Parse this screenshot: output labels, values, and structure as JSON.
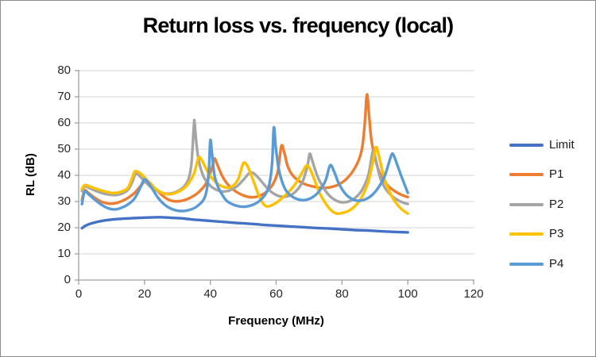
{
  "window": {
    "background": "#FFFFFF",
    "border_color": "#8C8C8C"
  },
  "chart_data": {
    "type": "line",
    "title": "Return loss vs. frequency (local)",
    "xlabel": "Frequency (MHz)",
    "ylabel": "RL (dB)",
    "xlim": [
      0,
      120
    ],
    "ylim": [
      0,
      80
    ],
    "x_ticks": [
      0,
      20,
      40,
      60,
      80,
      100,
      120
    ],
    "y_ticks": [
      0,
      10,
      20,
      30,
      40,
      50,
      60,
      70,
      80
    ],
    "grid": "horizontal",
    "legend_position": "right",
    "axis_color": "#A0A0A0",
    "grid_color": "#D6D6D6",
    "tick_label_color": "#262626",
    "series": [
      {
        "name": "Limit",
        "color": "#4472C4",
        "points": [
          [
            1,
            19.8
          ],
          [
            2,
            20.7
          ],
          [
            4,
            21.7
          ],
          [
            6,
            22.3
          ],
          [
            8,
            22.8
          ],
          [
            10,
            23.1
          ],
          [
            13,
            23.4
          ],
          [
            16,
            23.6
          ],
          [
            19,
            23.8
          ],
          [
            22,
            23.9
          ],
          [
            25,
            24.0
          ],
          [
            28,
            23.8
          ],
          [
            31,
            23.6
          ],
          [
            34,
            23.2
          ],
          [
            37,
            22.9
          ],
          [
            40,
            22.6
          ],
          [
            44,
            22.2
          ],
          [
            48,
            21.8
          ],
          [
            52,
            21.5
          ],
          [
            56,
            21.1
          ],
          [
            60,
            20.8
          ],
          [
            64,
            20.5
          ],
          [
            68,
            20.2
          ],
          [
            72,
            19.9
          ],
          [
            76,
            19.7
          ],
          [
            80,
            19.4
          ],
          [
            84,
            19.1
          ],
          [
            88,
            18.9
          ],
          [
            92,
            18.6
          ],
          [
            96,
            18.4
          ],
          [
            100,
            18.2
          ]
        ]
      },
      {
        "name": "P1",
        "color": "#ED7D31",
        "points": [
          [
            1,
            30.5
          ],
          [
            1.8,
            34.2
          ],
          [
            3,
            33.2
          ],
          [
            5,
            31.3
          ],
          [
            7,
            29.9
          ],
          [
            9,
            29.2
          ],
          [
            11,
            29.3
          ],
          [
            13,
            30.1
          ],
          [
            15,
            31.4
          ],
          [
            17,
            33.3
          ],
          [
            19,
            36.2
          ],
          [
            20.3,
            37.9
          ],
          [
            21.5,
            37.3
          ],
          [
            23,
            35.2
          ],
          [
            25,
            32.8
          ],
          [
            27,
            30.9
          ],
          [
            29,
            30.1
          ],
          [
            31,
            30.2
          ],
          [
            33,
            30.9
          ],
          [
            35,
            32.2
          ],
          [
            37,
            34.2
          ],
          [
            39,
            37.5
          ],
          [
            40.5,
            43.0
          ],
          [
            41.2,
            46.4
          ],
          [
            42,
            44.5
          ],
          [
            43.5,
            40.0
          ],
          [
            45,
            37.0
          ],
          [
            47,
            34.5
          ],
          [
            49,
            32.9
          ],
          [
            51,
            31.9
          ],
          [
            53,
            31.6
          ],
          [
            55,
            32.2
          ],
          [
            57,
            33.6
          ],
          [
            59,
            36.6
          ],
          [
            60.5,
            41.5
          ],
          [
            61.6,
            51.2
          ],
          [
            62.5,
            48.5
          ],
          [
            63.5,
            43.5
          ],
          [
            65,
            40.0
          ],
          [
            67,
            37.8
          ],
          [
            69,
            36.5
          ],
          [
            71,
            35.8
          ],
          [
            73,
            35.3
          ],
          [
            75,
            35.2
          ],
          [
            77,
            35.6
          ],
          [
            79,
            36.5
          ],
          [
            81,
            38.2
          ],
          [
            83,
            41.0
          ],
          [
            85,
            45.5
          ],
          [
            86.2,
            51.0
          ],
          [
            87,
            61.0
          ],
          [
            87.6,
            70.9
          ],
          [
            88.3,
            62.0
          ],
          [
            89,
            53.0
          ],
          [
            90.5,
            44.5
          ],
          [
            92,
            39.5
          ],
          [
            94,
            36.0
          ],
          [
            96,
            34.0
          ],
          [
            98,
            32.6
          ],
          [
            100,
            31.7
          ]
        ]
      },
      {
        "name": "P2",
        "color": "#A5A5A5",
        "points": [
          [
            1,
            34.0
          ],
          [
            1.9,
            35.8
          ],
          [
            3.5,
            35.0
          ],
          [
            5.5,
            33.9
          ],
          [
            7.5,
            33.1
          ],
          [
            9.5,
            32.6
          ],
          [
            11.5,
            32.5
          ],
          [
            13.5,
            33.2
          ],
          [
            15,
            34.5
          ],
          [
            16.3,
            37.5
          ],
          [
            17.3,
            40.7
          ],
          [
            18.3,
            40.0
          ],
          [
            20,
            37.8
          ],
          [
            22,
            35.4
          ],
          [
            24,
            33.9
          ],
          [
            26,
            33.1
          ],
          [
            28,
            33.1
          ],
          [
            30,
            33.9
          ],
          [
            32,
            35.7
          ],
          [
            33.5,
            39.0
          ],
          [
            34.3,
            45.0
          ],
          [
            35.0,
            59.0
          ],
          [
            35.2,
            60.5
          ],
          [
            35.7,
            53.0
          ],
          [
            36.5,
            45.5
          ],
          [
            38,
            39.4
          ],
          [
            40,
            36.0
          ],
          [
            42,
            34.4
          ],
          [
            44,
            33.8
          ],
          [
            46,
            34.3
          ],
          [
            48,
            35.7
          ],
          [
            50,
            38.2
          ],
          [
            51.8,
            40.8
          ],
          [
            53,
            40.9
          ],
          [
            54.5,
            39.2
          ],
          [
            56,
            37.0
          ],
          [
            58,
            34.2
          ],
          [
            60,
            32.5
          ],
          [
            62,
            31.8
          ],
          [
            64,
            32.2
          ],
          [
            66,
            33.9
          ],
          [
            68,
            37.5
          ],
          [
            69.5,
            43.5
          ],
          [
            70.2,
            48.2
          ],
          [
            71,
            45.5
          ],
          [
            72.5,
            39.8
          ],
          [
            74,
            36.0
          ],
          [
            76,
            32.5
          ],
          [
            78,
            30.5
          ],
          [
            80,
            29.7
          ],
          [
            82,
            30.0
          ],
          [
            84,
            31.4
          ],
          [
            86,
            34.2
          ],
          [
            88,
            40.0
          ],
          [
            89.4,
            49.3
          ],
          [
            90.2,
            46.5
          ],
          [
            91.5,
            39.5
          ],
          [
            93,
            35.3
          ],
          [
            95,
            32.3
          ],
          [
            97,
            30.5
          ],
          [
            99,
            29.4
          ],
          [
            100,
            29.1
          ]
        ]
      },
      {
        "name": "P3",
        "color": "#FFC000",
        "points": [
          [
            1,
            34.8
          ],
          [
            1.9,
            36.3
          ],
          [
            3.5,
            35.7
          ],
          [
            5.5,
            34.8
          ],
          [
            7.5,
            34.0
          ],
          [
            9.5,
            33.4
          ],
          [
            11.5,
            33.3
          ],
          [
            13.5,
            34.0
          ],
          [
            15,
            35.3
          ],
          [
            16.2,
            38.8
          ],
          [
            17,
            41.4
          ],
          [
            18,
            41.3
          ],
          [
            19.5,
            39.9
          ],
          [
            21,
            37.8
          ],
          [
            23,
            35.2
          ],
          [
            25,
            33.5
          ],
          [
            27,
            32.8
          ],
          [
            29,
            33.1
          ],
          [
            31,
            34.2
          ],
          [
            33,
            36.3
          ],
          [
            35,
            40.5
          ],
          [
            36.4,
            46.7
          ],
          [
            37.4,
            45.8
          ],
          [
            38.6,
            42.8
          ],
          [
            40,
            39.8
          ],
          [
            42,
            37.0
          ],
          [
            44,
            35.6
          ],
          [
            45.5,
            35.3
          ],
          [
            47,
            36.1
          ],
          [
            48.5,
            38.7
          ],
          [
            49.8,
            44.0
          ],
          [
            50.5,
            44.8
          ],
          [
            51.5,
            43.0
          ],
          [
            53,
            38.2
          ],
          [
            54.5,
            33.0
          ],
          [
            56,
            29.3
          ],
          [
            57.2,
            28.1
          ],
          [
            58.5,
            28.5
          ],
          [
            60,
            29.5
          ],
          [
            62,
            31.5
          ],
          [
            64,
            33.9
          ],
          [
            66,
            37.0
          ],
          [
            68,
            41.3
          ],
          [
            69.2,
            43.7
          ],
          [
            70.2,
            42.7
          ],
          [
            71.5,
            38.8
          ],
          [
            73,
            33.8
          ],
          [
            75,
            29.3
          ],
          [
            77,
            26.3
          ],
          [
            78.6,
            25.4
          ],
          [
            80,
            25.6
          ],
          [
            82,
            26.4
          ],
          [
            84,
            28.3
          ],
          [
            86,
            31.6
          ],
          [
            88,
            37.5
          ],
          [
            89.6,
            46.5
          ],
          [
            90.4,
            50.8
          ],
          [
            91.2,
            47.5
          ],
          [
            92.5,
            40.5
          ],
          [
            94,
            34.9
          ],
          [
            96,
            30.2
          ],
          [
            98,
            27.2
          ],
          [
            100,
            25.4
          ]
        ]
      },
      {
        "name": "P4",
        "color": "#5B9BD5",
        "points": [
          [
            1,
            29.0
          ],
          [
            1.8,
            33.7
          ],
          [
            3,
            32.8
          ],
          [
            5,
            30.6
          ],
          [
            7,
            28.7
          ],
          [
            9,
            27.4
          ],
          [
            11,
            27.0
          ],
          [
            13,
            27.6
          ],
          [
            15,
            28.9
          ],
          [
            17,
            31.2
          ],
          [
            18.8,
            35.5
          ],
          [
            19.9,
            38.4
          ],
          [
            21,
            37.4
          ],
          [
            22.5,
            34.6
          ],
          [
            24,
            31.6
          ],
          [
            26,
            28.9
          ],
          [
            28,
            27.3
          ],
          [
            30,
            26.5
          ],
          [
            32,
            26.4
          ],
          [
            34,
            26.9
          ],
          [
            36,
            28.2
          ],
          [
            38,
            30.8
          ],
          [
            39,
            35.0
          ],
          [
            39.6,
            43.0
          ],
          [
            40,
            53.4
          ],
          [
            40.5,
            48.5
          ],
          [
            41.2,
            40.5
          ],
          [
            42.2,
            36.0
          ],
          [
            43.5,
            32.8
          ],
          [
            45,
            30.2
          ],
          [
            47,
            28.8
          ],
          [
            49,
            28.1
          ],
          [
            51,
            28.1
          ],
          [
            53,
            28.8
          ],
          [
            55,
            30.3
          ],
          [
            57,
            33.3
          ],
          [
            58,
            37.0
          ],
          [
            58.8,
            45.0
          ],
          [
            59.3,
            58.3
          ],
          [
            59.9,
            50.5
          ],
          [
            60.7,
            43.0
          ],
          [
            61.7,
            38.0
          ],
          [
            63,
            34.2
          ],
          [
            65,
            31.8
          ],
          [
            67,
            30.7
          ],
          [
            69,
            30.6
          ],
          [
            71,
            31.6
          ],
          [
            73,
            33.8
          ],
          [
            75,
            38.0
          ],
          [
            76.4,
            43.8
          ],
          [
            77.6,
            41.5
          ],
          [
            79,
            37.0
          ],
          [
            81,
            33.0
          ],
          [
            83,
            31.0
          ],
          [
            85,
            30.3
          ],
          [
            87,
            30.8
          ],
          [
            89,
            32.3
          ],
          [
            91,
            35.2
          ],
          [
            93,
            39.8
          ],
          [
            94.9,
            47.3
          ],
          [
            95.6,
            47.9
          ],
          [
            96.8,
            44.0
          ],
          [
            98,
            39.8
          ],
          [
            100,
            33.3
          ]
        ]
      }
    ]
  }
}
